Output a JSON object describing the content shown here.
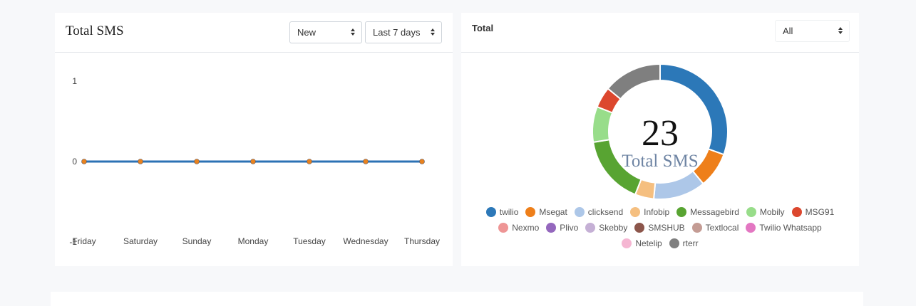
{
  "line_card": {
    "title": "Total SMS",
    "status_select": "New",
    "range_select": "Last 7 days"
  },
  "pie_card": {
    "title": "Total",
    "provider_select": "All",
    "center_value": "23",
    "center_label": "Total SMS"
  },
  "chart_data": [
    {
      "type": "line",
      "title": "Total SMS",
      "categories": [
        "Friday",
        "Saturday",
        "Sunday",
        "Monday",
        "Tuesday",
        "Wednesday",
        "Thursday"
      ],
      "series": [
        {
          "values": [
            0,
            0,
            0,
            0,
            0,
            0,
            0
          ],
          "color": "#2c72b4",
          "point_color": "#e8821e"
        }
      ],
      "y_ticks": [
        "1",
        "0",
        "-1"
      ],
      "ylim": [
        -1,
        1
      ],
      "grid": false
    },
    {
      "type": "pie",
      "title": "Total",
      "labels": [
        "twilio",
        "Msegat",
        "clicksend",
        "Infobip",
        "Messagebird",
        "Mobily",
        "MSG91",
        "Nexmo",
        "Plivo",
        "Skebby",
        "SMSHUB",
        "Textlocal",
        "Twilio Whatsapp",
        "Netelip",
        "rterr"
      ],
      "values": [
        30.5,
        8.5,
        12.5,
        4.5,
        16.5,
        8.5,
        5,
        0,
        0,
        0,
        0,
        0,
        0,
        0,
        14
      ],
      "colors": [
        "#2c78b8",
        "#ee7f1a",
        "#adc7e8",
        "#f5bf80",
        "#58a432",
        "#98dd8a",
        "#dc472e",
        "#ee9595",
        "#9467bd",
        "#c5b0d5",
        "#8c564b",
        "#c49c94",
        "#e377c2",
        "#f5b6d2",
        "#7f7f7f"
      ],
      "legend_placement": "bottom"
    }
  ]
}
